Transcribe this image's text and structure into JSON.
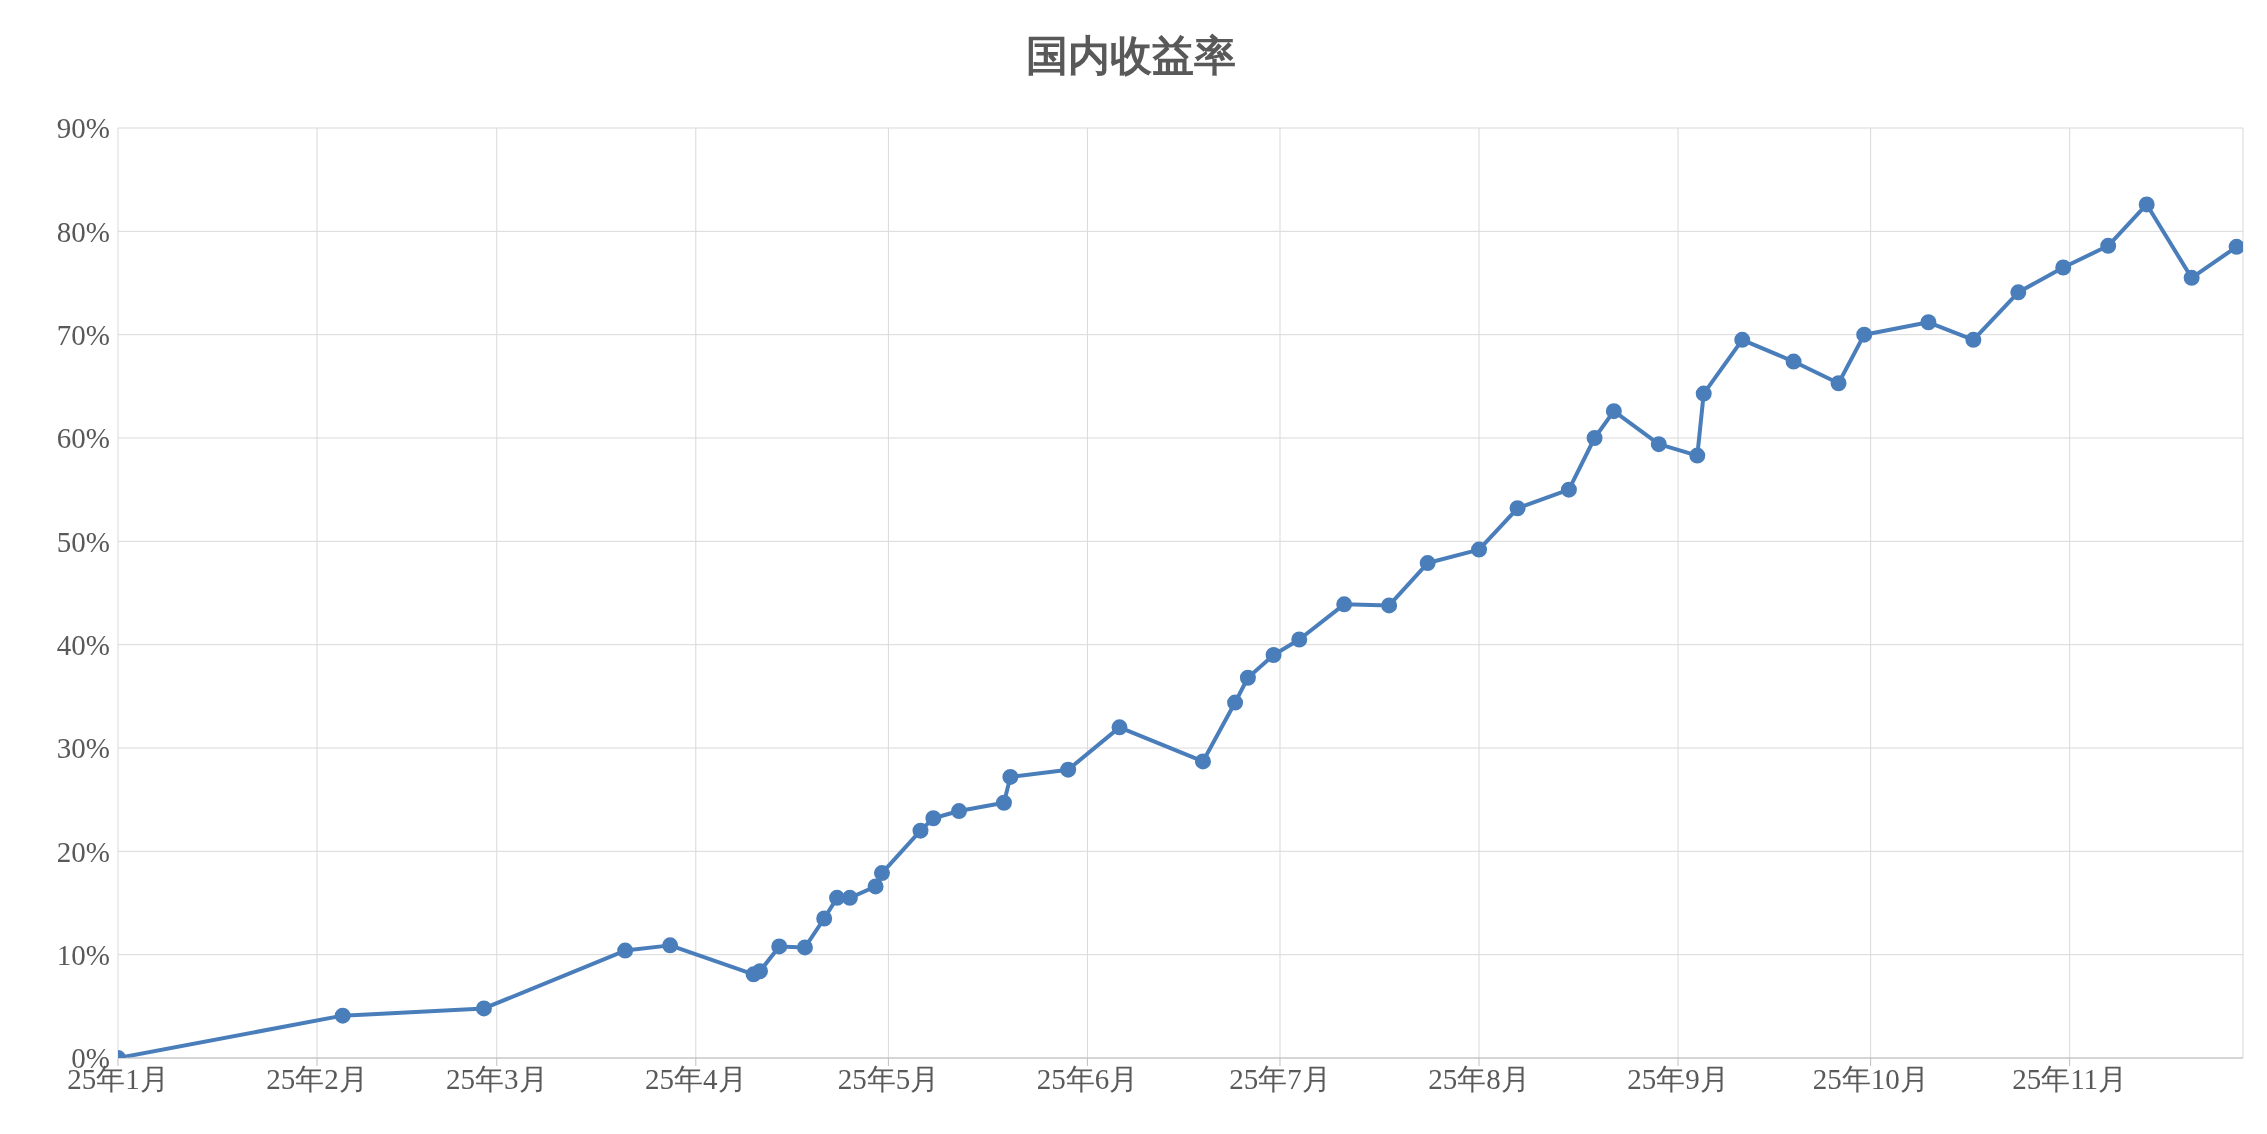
{
  "chart_data": {
    "type": "line",
    "title": "国内收益率",
    "x": [
      "--01-01",
      "--02-05",
      "--02-27",
      "--03-21",
      "--03-28",
      "--04-10",
      "--04-11",
      "--04-14",
      "--04-18",
      "--04-21",
      "--04-23",
      "--04-25",
      "--04-29",
      "--04-30",
      "--05-06",
      "--05-08",
      "--05-12",
      "--05-19",
      "--05-20",
      "--05-29",
      "--06-06",
      "--06-19",
      "--06-24",
      "--06-26",
      "--06-30",
      "--07-04",
      "--07-11",
      "--07-18",
      "--07-24",
      "--08-01",
      "--08-07",
      "--08-15",
      "--08-19",
      "--08-22",
      "--08-29",
      "--09-04",
      "--09-05",
      "--09-11",
      "--09-19",
      "--09-26",
      "--09-30",
      "--10-10",
      "--10-17",
      "--10-24",
      "--10-31",
      "--11-07",
      "--11-13",
      "--11-20",
      "--11-27"
    ],
    "series": [
      {
        "color": "#4a7ebb",
        "values": [
          0,
          4.1,
          4.8,
          10.4,
          10.9,
          8.1,
          8.4,
          10.8,
          10.7,
          13.5,
          15.5,
          15.5,
          16.6,
          17.9,
          22.0,
          23.2,
          23.9,
          24.7,
          27.2,
          27.9,
          32.0,
          28.7,
          34.4,
          36.8,
          39.0,
          40.5,
          43.9,
          43.8,
          47.9,
          49.2,
          53.2,
          55.0,
          60.0,
          62.6,
          59.4,
          58.3,
          64.3,
          69.5,
          67.4,
          65.3,
          70.0,
          71.2,
          69.5,
          74.1,
          76.5,
          78.6,
          82.6,
          75.5,
          78.5
        ]
      }
    ],
    "xlim": [
      "--01-01",
      "--11-28"
    ],
    "xticks": [
      {
        "value": "--01-01",
        "label": "25年1月"
      },
      {
        "value": "--02-01",
        "label": "25年2月"
      },
      {
        "value": "--03-01",
        "label": "25年3月"
      },
      {
        "value": "--04-01",
        "label": "25年4月"
      },
      {
        "value": "--05-01",
        "label": "25年5月"
      },
      {
        "value": "--06-01",
        "label": "25年6月"
      },
      {
        "value": "--07-01",
        "label": "25年7月"
      },
      {
        "value": "--08-01",
        "label": "25年8月"
      },
      {
        "value": "--09-01",
        "label": "25年9月"
      },
      {
        "value": "--10-01",
        "label": "25年10月"
      },
      {
        "value": "--11-01",
        "label": "25年11月"
      }
    ],
    "ylim": [
      0,
      90
    ],
    "yticks": [
      {
        "value": 0,
        "label": "0%"
      },
      {
        "value": 10,
        "label": "10%"
      },
      {
        "value": 20,
        "label": "20%"
      },
      {
        "value": 30,
        "label": "30%"
      },
      {
        "value": 40,
        "label": "40%"
      },
      {
        "value": 50,
        "label": "50%"
      },
      {
        "value": 60,
        "label": "60%"
      },
      {
        "value": 70,
        "label": "70%"
      },
      {
        "value": 80,
        "label": "80%"
      },
      {
        "value": 90,
        "label": "90%"
      }
    ],
    "grid": true,
    "marker": "circle",
    "line_style": "solid"
  }
}
